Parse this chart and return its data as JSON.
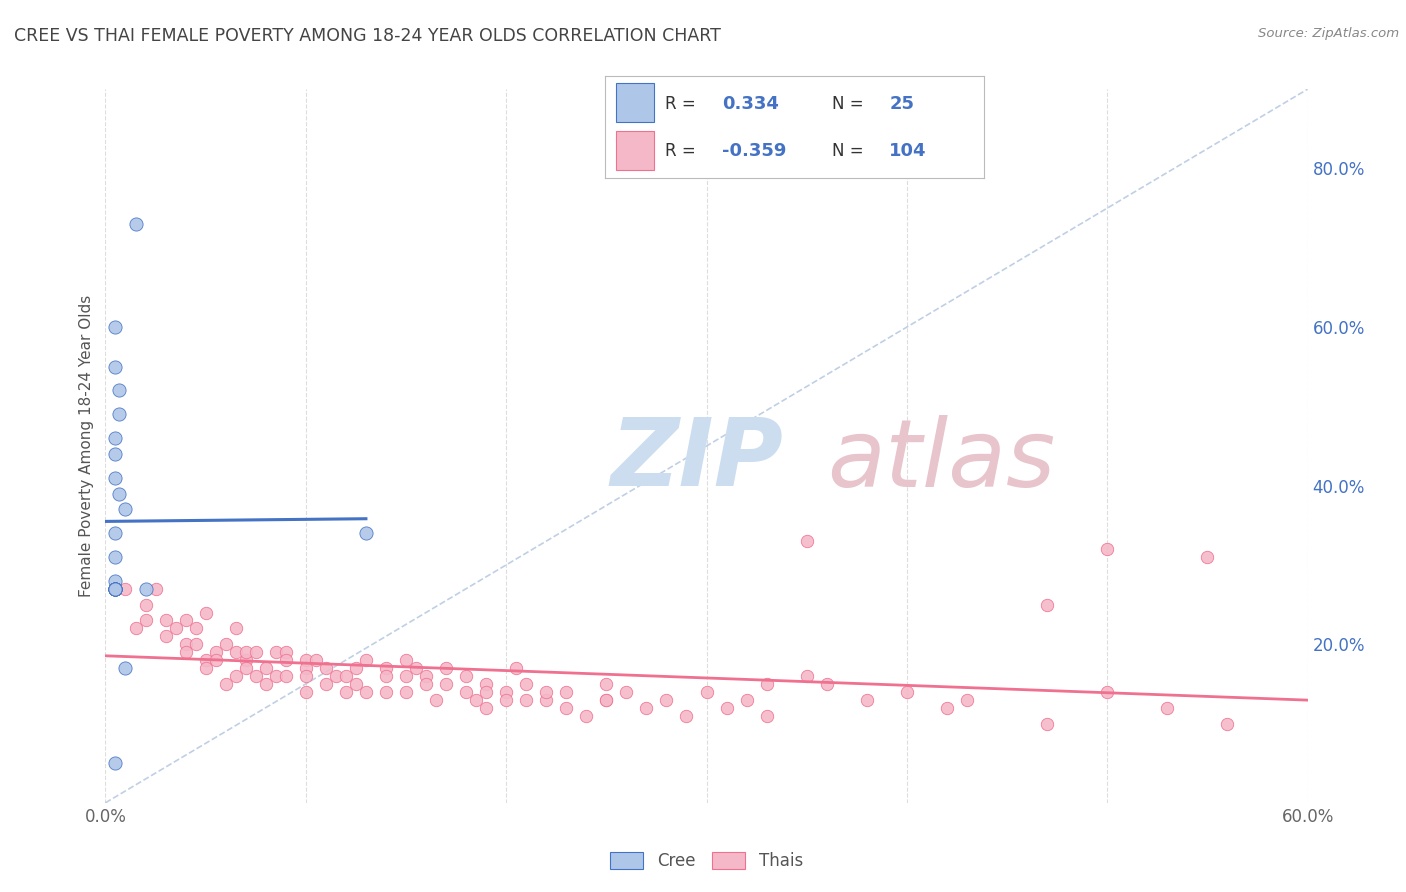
{
  "title": "CREE VS THAI FEMALE POVERTY AMONG 18-24 YEAR OLDS CORRELATION CHART",
  "source": "Source: ZipAtlas.com",
  "ylabel": "Female Poverty Among 18-24 Year Olds",
  "cree_R": 0.334,
  "cree_N": 25,
  "thai_R": -0.359,
  "thai_N": 104,
  "xlim": [
    0.0,
    0.6
  ],
  "ylim": [
    0.0,
    0.9
  ],
  "cree_scatter_x": [
    0.015,
    0.005,
    0.005,
    0.007,
    0.007,
    0.005,
    0.005,
    0.005,
    0.007,
    0.01,
    0.005,
    0.005,
    0.005,
    0.005,
    0.005,
    0.005,
    0.005,
    0.005,
    0.005,
    0.005,
    0.01,
    0.02,
    0.13,
    0.005,
    0.005
  ],
  "cree_scatter_y": [
    0.73,
    0.6,
    0.55,
    0.52,
    0.49,
    0.46,
    0.44,
    0.41,
    0.39,
    0.37,
    0.34,
    0.31,
    0.28,
    0.27,
    0.27,
    0.27,
    0.27,
    0.27,
    0.27,
    0.27,
    0.17,
    0.27,
    0.34,
    0.27,
    0.05
  ],
  "thai_scatter_x": [
    0.005,
    0.01,
    0.015,
    0.02,
    0.02,
    0.025,
    0.03,
    0.03,
    0.035,
    0.04,
    0.04,
    0.04,
    0.045,
    0.045,
    0.05,
    0.05,
    0.05,
    0.055,
    0.055,
    0.06,
    0.06,
    0.065,
    0.065,
    0.065,
    0.07,
    0.07,
    0.07,
    0.075,
    0.075,
    0.08,
    0.08,
    0.085,
    0.085,
    0.09,
    0.09,
    0.09,
    0.1,
    0.1,
    0.1,
    0.1,
    0.105,
    0.11,
    0.11,
    0.115,
    0.12,
    0.12,
    0.125,
    0.125,
    0.13,
    0.13,
    0.14,
    0.14,
    0.14,
    0.15,
    0.15,
    0.15,
    0.155,
    0.16,
    0.16,
    0.165,
    0.17,
    0.17,
    0.18,
    0.18,
    0.185,
    0.19,
    0.19,
    0.19,
    0.2,
    0.2,
    0.205,
    0.21,
    0.21,
    0.22,
    0.22,
    0.23,
    0.23,
    0.24,
    0.25,
    0.25,
    0.25,
    0.26,
    0.27,
    0.28,
    0.29,
    0.3,
    0.31,
    0.32,
    0.33,
    0.33,
    0.35,
    0.36,
    0.38,
    0.4,
    0.42,
    0.43,
    0.47,
    0.5,
    0.53,
    0.56,
    0.35,
    0.5,
    0.47,
    0.55
  ],
  "thai_scatter_y": [
    0.27,
    0.27,
    0.22,
    0.25,
    0.23,
    0.27,
    0.23,
    0.21,
    0.22,
    0.23,
    0.2,
    0.19,
    0.22,
    0.2,
    0.18,
    0.17,
    0.24,
    0.19,
    0.18,
    0.15,
    0.2,
    0.22,
    0.19,
    0.16,
    0.18,
    0.19,
    0.17,
    0.16,
    0.19,
    0.17,
    0.15,
    0.19,
    0.16,
    0.19,
    0.18,
    0.16,
    0.18,
    0.17,
    0.16,
    0.14,
    0.18,
    0.15,
    0.17,
    0.16,
    0.14,
    0.16,
    0.15,
    0.17,
    0.18,
    0.14,
    0.17,
    0.16,
    0.14,
    0.18,
    0.16,
    0.14,
    0.17,
    0.16,
    0.15,
    0.13,
    0.15,
    0.17,
    0.16,
    0.14,
    0.13,
    0.15,
    0.14,
    0.12,
    0.14,
    0.13,
    0.17,
    0.15,
    0.13,
    0.13,
    0.14,
    0.12,
    0.14,
    0.11,
    0.15,
    0.13,
    0.13,
    0.14,
    0.12,
    0.13,
    0.11,
    0.14,
    0.12,
    0.13,
    0.11,
    0.15,
    0.16,
    0.15,
    0.13,
    0.14,
    0.12,
    0.13,
    0.1,
    0.14,
    0.12,
    0.1,
    0.33,
    0.32,
    0.25,
    0.31
  ],
  "background_color": "#ffffff",
  "grid_color": "#dddddd",
  "cree_line_color": "#4472c4",
  "thai_line_color": "#f07090",
  "cree_scatter_color": "#aec6e8",
  "thai_scatter_color": "#f4b8c8",
  "diag_line_color": "#b0c4de",
  "title_color": "#444444",
  "source_color": "#888888",
  "watermark_zip_color": "#ccddf0",
  "watermark_atlas_color": "#e8c4cc",
  "axis_tick_color": "#666666",
  "right_tick_color": "#4472c4"
}
